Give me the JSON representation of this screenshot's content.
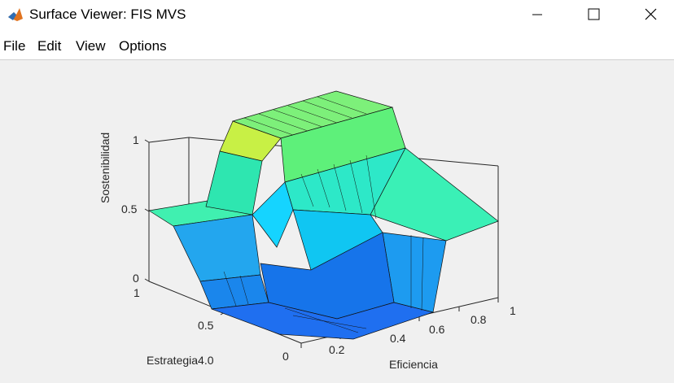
{
  "window": {
    "title": "Surface Viewer: FIS MVS",
    "minimize_icon": "minimize-icon",
    "maximize_icon": "maximize-icon",
    "close_icon": "close-icon"
  },
  "menu": {
    "items": [
      "File",
      "Edit",
      "View",
      "Options"
    ]
  },
  "plot": {
    "zlabel": "Sostenibilidad",
    "xlabel": "Eficiencia",
    "ylabel": "Estrategia4.0",
    "zticks": [
      "0",
      "0.5",
      "1"
    ],
    "xticks": [
      "0.2",
      "0.4",
      "0.6",
      "0.8",
      "1"
    ],
    "yticks": [
      "0",
      "0.5",
      "1"
    ],
    "colors": {
      "low": "#1f6fe6",
      "mid": "#33e0c0",
      "high": "#f6e31a",
      "background": "#f0f0f0"
    }
  }
}
